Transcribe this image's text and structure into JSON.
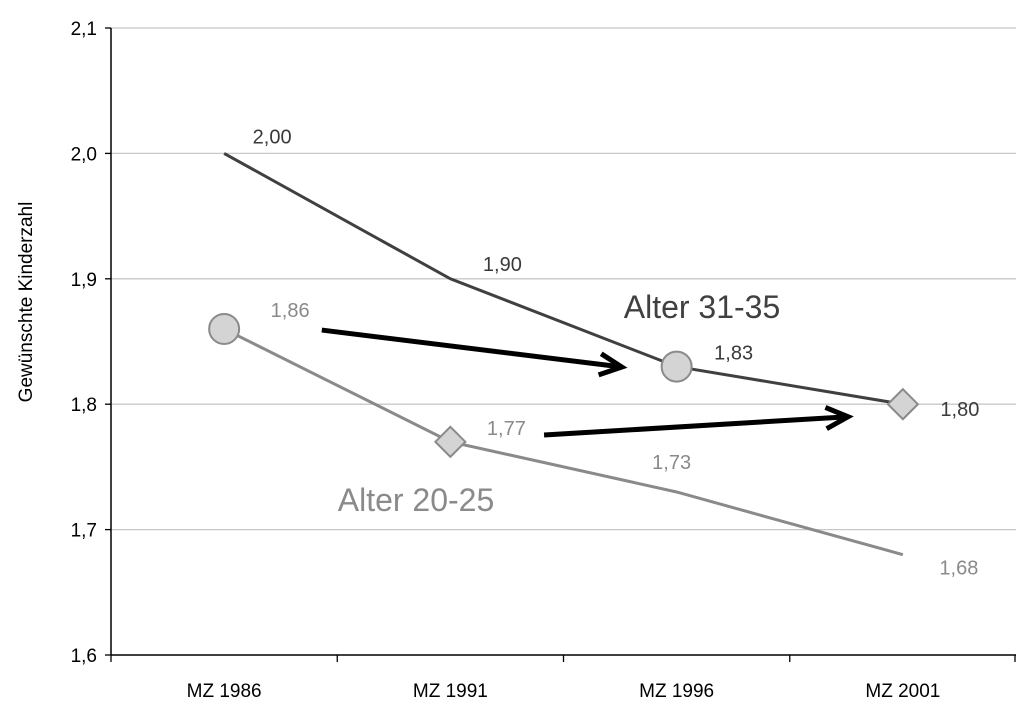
{
  "chart_data": {
    "type": "line",
    "title": "",
    "xlabel": "",
    "ylabel": "Gewünschte Kinderzahl",
    "ylim": [
      1.6,
      2.1
    ],
    "yticks": [
      "1,6",
      "1,7",
      "1,8",
      "1,9",
      "2,0",
      "2,1"
    ],
    "grid": true,
    "categories": [
      "MZ 1986",
      "MZ 1991",
      "MZ 1996",
      "MZ 2001"
    ],
    "series": [
      {
        "name": "Alter 31-35",
        "color": "#404040",
        "values": [
          2.0,
          1.9,
          1.83,
          1.8
        ],
        "labels": [
          "2,00",
          "1,90",
          "1,83",
          "1,80"
        ]
      },
      {
        "name": "Alter 20-25",
        "color": "#8a8a8a",
        "values": [
          1.86,
          1.77,
          1.73,
          1.68
        ],
        "labels": [
          "1,86",
          "1,77",
          "1,73",
          "1,68"
        ]
      }
    ],
    "markers": [
      {
        "shape": "circle",
        "category": "MZ 1986",
        "value": 1.86
      },
      {
        "shape": "diamond",
        "category": "MZ 1991",
        "value": 1.77
      },
      {
        "shape": "circle",
        "category": "MZ 1996",
        "value": 1.83
      },
      {
        "shape": "diamond",
        "category": "MZ 2001",
        "value": 1.8
      }
    ],
    "arrows": [
      {
        "from": {
          "category": "MZ 1986",
          "value": 1.86
        },
        "to": {
          "category": "MZ 1996",
          "value": 1.83
        }
      },
      {
        "from": {
          "category": "MZ 1991",
          "value": 1.77
        },
        "to": {
          "category": "MZ 2001",
          "value": 1.8
        }
      }
    ],
    "marker_fill": "#d4d4d4",
    "marker_stroke": "#8a8a8a",
    "arrow_color": "#000000"
  }
}
